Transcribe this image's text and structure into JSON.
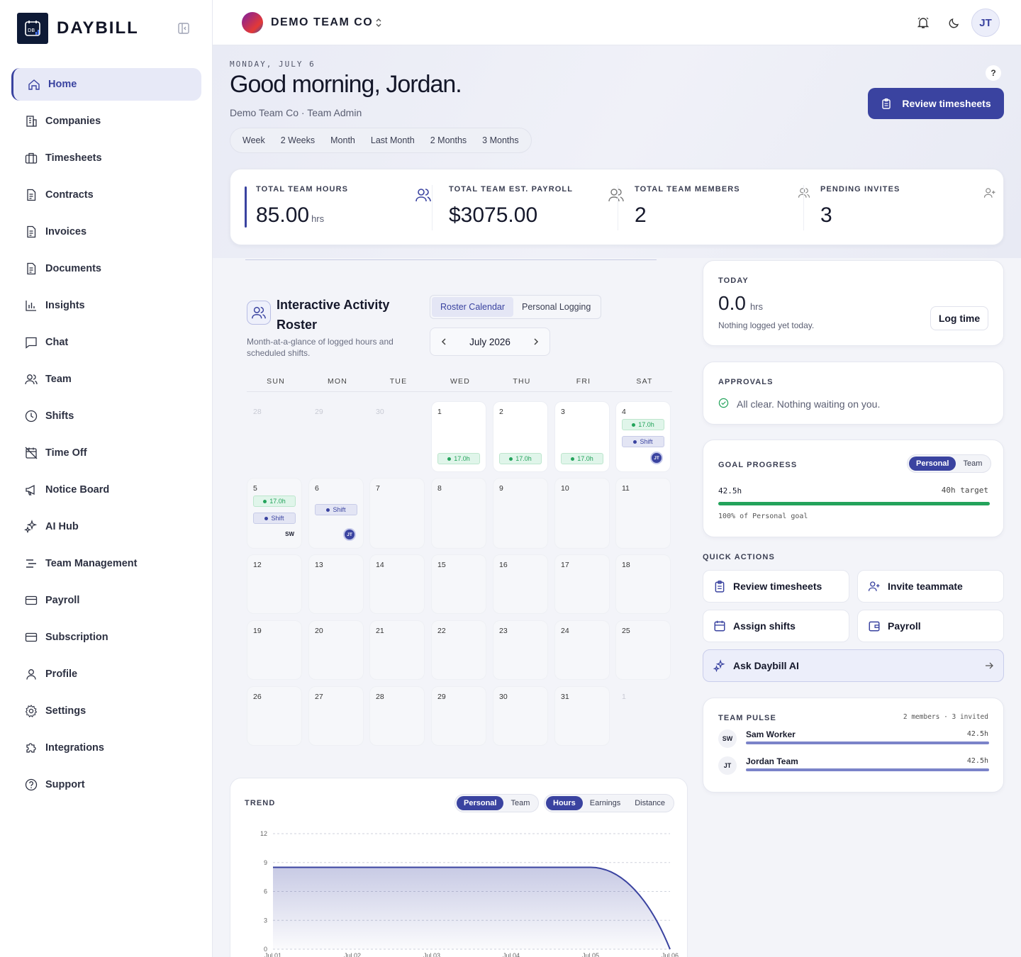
{
  "brand": {
    "name": "DAYBILL",
    "logo_text": "DB"
  },
  "sidebar": {
    "items": [
      {
        "label": "Home",
        "icon": "home-icon",
        "active": true
      },
      {
        "label": "Companies",
        "icon": "building-icon"
      },
      {
        "label": "Timesheets",
        "icon": "briefcase-icon"
      },
      {
        "label": "Contracts",
        "icon": "document-icon"
      },
      {
        "label": "Invoices",
        "icon": "document-icon"
      },
      {
        "label": "Documents",
        "icon": "document-icon"
      },
      {
        "label": "Insights",
        "icon": "bar-chart-icon"
      },
      {
        "label": "Chat",
        "icon": "chat-icon"
      },
      {
        "label": "Team",
        "icon": "users-icon"
      },
      {
        "label": "Shifts",
        "icon": "clock-icon"
      },
      {
        "label": "Time Off",
        "icon": "calendar-off-icon"
      },
      {
        "label": "Notice Board",
        "icon": "megaphone-icon"
      },
      {
        "label": "AI Hub",
        "icon": "sparkles-icon"
      },
      {
        "label": "Team Management",
        "icon": "list-icon"
      },
      {
        "label": "Payroll",
        "icon": "card-icon"
      },
      {
        "label": "Subscription",
        "icon": "card-icon"
      },
      {
        "label": "Profile",
        "icon": "user-icon"
      },
      {
        "label": "Settings",
        "icon": "gear-icon"
      },
      {
        "label": "Integrations",
        "icon": "puzzle-icon"
      },
      {
        "label": "Support",
        "icon": "help-circle-icon"
      }
    ]
  },
  "topbar": {
    "team": "DEMO TEAM CO",
    "avatar": "JT"
  },
  "hero": {
    "date": "MONDAY, JULY 6",
    "greeting": "Good morning, Jordan.",
    "subtitle": "Demo Team Co · Team Admin",
    "help": "?",
    "review_button": "Review timesheets",
    "ranges": [
      "Week",
      "2 Weeks",
      "Month",
      "Last Month",
      "2 Months",
      "3 Months"
    ]
  },
  "stats": [
    {
      "label": "TOTAL TEAM HOURS",
      "value": "85.00",
      "unit": "hrs"
    },
    {
      "label": "TOTAL TEAM EST. PAYROLL",
      "value": "$3075.00",
      "unit": ""
    },
    {
      "label": "TOTAL TEAM MEMBERS",
      "value": "2",
      "unit": ""
    },
    {
      "label": "PENDING INVITES",
      "value": "3",
      "unit": ""
    }
  ],
  "roster": {
    "title": "Interactive Activity Roster",
    "description": "Month-at-a-glance of logged hours and scheduled shifts.",
    "tabs": [
      "Roster Calendar",
      "Personal Logging"
    ],
    "month": "July 2026",
    "weekdays": [
      "SUN",
      "MON",
      "TUE",
      "WED",
      "THU",
      "FRI",
      "SAT"
    ],
    "hours_pill": "17.0h",
    "shift_pill": "Shift",
    "jt": "JT",
    "sw": "SW",
    "days": [
      "28",
      "29",
      "30",
      "1",
      "2",
      "3",
      "4",
      "5",
      "6",
      "7",
      "8",
      "9",
      "10",
      "11",
      "12",
      "13",
      "14",
      "15",
      "16",
      "17",
      "18",
      "19",
      "20",
      "21",
      "22",
      "23",
      "24",
      "25",
      "26",
      "27",
      "28",
      "29",
      "30",
      "31",
      "1"
    ]
  },
  "today": {
    "title": "TODAY",
    "value": "0.0",
    "unit": "hrs",
    "note": "Nothing logged yet today.",
    "button": "Log time"
  },
  "approvals": {
    "title": "APPROVALS",
    "message": "All clear. Nothing waiting on you."
  },
  "goal": {
    "title": "GOAL PROGRESS",
    "toggle": [
      "Personal",
      "Team"
    ],
    "current": "42.5h",
    "target": "40h target",
    "caption": "100% of Personal goal",
    "progress": 1.0
  },
  "quick_actions": {
    "title": "QUICK ACTIONS",
    "items": [
      {
        "label": "Review timesheets",
        "icon": "clipboard-icon"
      },
      {
        "label": "Invite teammate",
        "icon": "user-plus-icon"
      },
      {
        "label": "Assign shifts",
        "icon": "calendar-icon"
      },
      {
        "label": "Payroll",
        "icon": "wallet-icon"
      }
    ],
    "ai": "Ask Daybill AI"
  },
  "pulse": {
    "title": "TEAM PULSE",
    "summary": "2 members · 3 invited",
    "members": [
      {
        "initials": "SW",
        "name": "Sam Worker",
        "hours": "42.5h"
      },
      {
        "initials": "JT",
        "name": "Jordan Team",
        "hours": "42.5h"
      }
    ]
  },
  "trend": {
    "title": "TREND",
    "toggle1": [
      "Personal",
      "Team"
    ],
    "toggle2": [
      "Hours",
      "Earnings",
      "Distance"
    ]
  },
  "chart_data": {
    "type": "area",
    "x": [
      "Jul 01",
      "Jul 02",
      "Jul 03",
      "Jul 04",
      "Jul 05",
      "Jul 06"
    ],
    "values": [
      8.5,
      8.5,
      8.5,
      8.5,
      8.5,
      0
    ],
    "ylim": [
      0,
      12
    ],
    "yticks": [
      0,
      3,
      6,
      9,
      12
    ],
    "grid": true,
    "color": "#3a43a0"
  }
}
